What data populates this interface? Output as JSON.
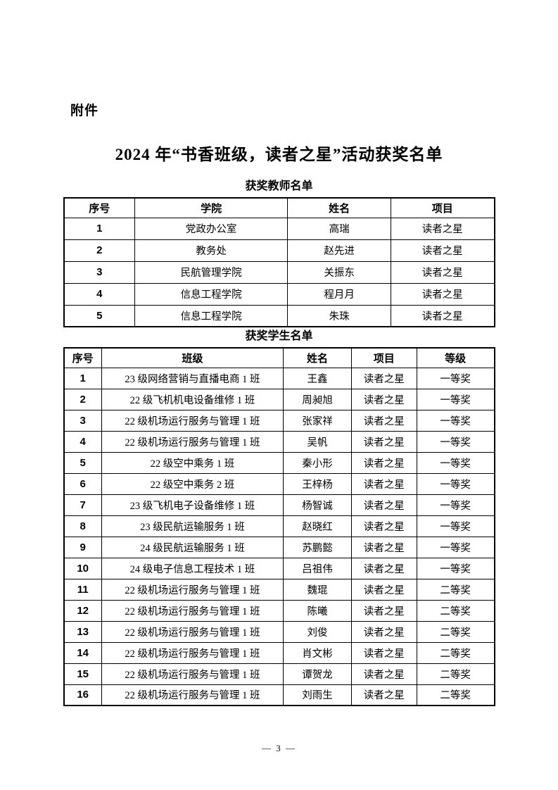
{
  "colors": {
    "background": "#ffffff",
    "text": "#000000",
    "table_border": "#000000"
  },
  "page": {
    "attachment_label": "附件",
    "title": "2024 年“书香班级，读者之星”活动获奖名单",
    "footer_page_number": "— 3 —"
  },
  "teacher_table": {
    "title": "获奖教师名单",
    "headers": [
      "序号",
      "学院",
      "姓名",
      "项目"
    ],
    "rows": [
      [
        "1",
        "党政办公室",
        "高瑞",
        "读者之星"
      ],
      [
        "2",
        "教务处",
        "赵先进",
        "读者之星"
      ],
      [
        "3",
        "民航管理学院",
        "关振东",
        "读者之星"
      ],
      [
        "4",
        "信息工程学院",
        "程月月",
        "读者之星"
      ],
      [
        "5",
        "信息工程学院",
        "朱珠",
        "读者之星"
      ]
    ]
  },
  "student_table": {
    "title": "获奖学生名单",
    "headers": [
      "序号",
      "班级",
      "姓名",
      "项目",
      "等级"
    ],
    "rows": [
      [
        "1",
        "23 级网络营销与直播电商 1 班",
        "王鑫",
        "读者之星",
        "一等奖"
      ],
      [
        "2",
        "22 级飞机机电设备维修 1 班",
        "周昶旭",
        "读者之星",
        "一等奖"
      ],
      [
        "3",
        "22 级机场运行服务与管理 1 班",
        "张家祥",
        "读者之星",
        "一等奖"
      ],
      [
        "4",
        "22 级机场运行服务与管理 1 班",
        "吴帆",
        "读者之星",
        "一等奖"
      ],
      [
        "5",
        "22 级空中乘务 1 班",
        "秦小形",
        "读者之星",
        "一等奖"
      ],
      [
        "6",
        "22 级空中乘务 2 班",
        "王梓杨",
        "读者之星",
        "一等奖"
      ],
      [
        "7",
        "23 级飞机电子设备维修 1 班",
        "杨智诚",
        "读者之星",
        "一等奖"
      ],
      [
        "8",
        "23 级民航运输服务 1 班",
        "赵晓红",
        "读者之星",
        "一等奖"
      ],
      [
        "9",
        "24 级民航运输服务 1 班",
        "苏鹏懿",
        "读者之星",
        "一等奖"
      ],
      [
        "10",
        "24 级电子信息工程技术 1 班",
        "吕祖伟",
        "读者之星",
        "一等奖"
      ],
      [
        "11",
        "22 级机场运行服务与管理 1 班",
        "魏琨",
        "读者之星",
        "二等奖"
      ],
      [
        "12",
        "22 级机场运行服务与管理 1 班",
        "陈曦",
        "读者之星",
        "二等奖"
      ],
      [
        "13",
        "22 级机场运行服务与管理 1 班",
        "刘俊",
        "读者之星",
        "二等奖"
      ],
      [
        "14",
        "22 级机场运行服务与管理 1 班",
        "肖文彬",
        "读者之星",
        "二等奖"
      ],
      [
        "15",
        "22 级机场运行服务与管理 1 班",
        "谭贺龙",
        "读者之星",
        "二等奖"
      ],
      [
        "16",
        "22 级机场运行服务与管理 1 班",
        "刘雨生",
        "读者之星",
        "二等奖"
      ]
    ]
  }
}
